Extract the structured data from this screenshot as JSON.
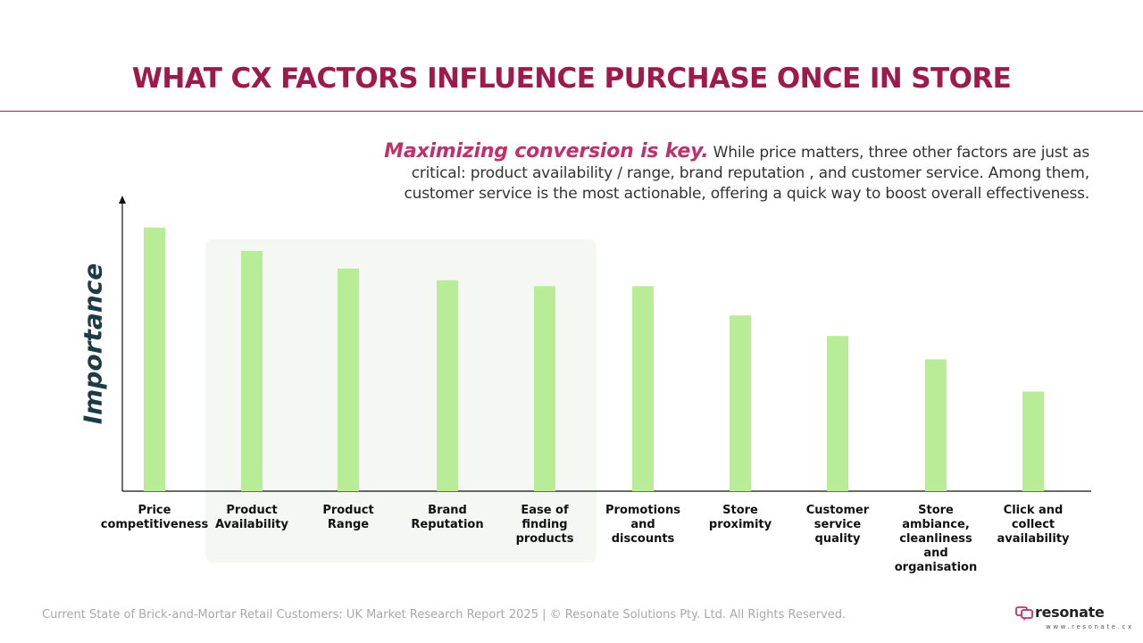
{
  "page": {
    "title": "WHAT CX FACTORS INFLUENCE PURCHASE ONCE IN STORE",
    "intro_lead": "Maximizing conversion is key.",
    "intro_body": " While price matters, three other factors are just as critical: product availability / range, brand reputation , and customer service. Among them, customer service is the most actionable, offering a quick way to boost overall effectiveness.",
    "footer": "Current State of Brick-and-Mortar Retail Customers: UK Market Research Report 2025 | © Resonate Solutions Pty. Ltd. All Rights Reserved.",
    "logo_word": "resonate",
    "logo_url": "www.resonate.cx"
  },
  "colors": {
    "title": "#9e1a4b",
    "accent": "#c2306a",
    "bar": "#b8ec97",
    "axis_label": "#1b3b47",
    "highlight_bg": "#f4f7f2"
  },
  "chart_data": {
    "type": "bar",
    "title": "",
    "xlabel": "",
    "ylabel": "Importance",
    "ylim": [
      0,
      100
    ],
    "grid": false,
    "legend": "none",
    "categories": [
      "Price competitiveness",
      "Product Availability",
      "Product Range",
      "Brand Reputation",
      "Ease of finding products",
      "Promotions and discounts",
      "Store proximity",
      "Customer service quality",
      "Store ambiance, cleanliness and organisation",
      "Click and collect availability"
    ],
    "category_lines": [
      [
        "Price",
        "competitiveness"
      ],
      [
        "Product",
        "Availability"
      ],
      [
        "Product",
        "Range"
      ],
      [
        "Brand",
        "Reputation"
      ],
      [
        "Ease of",
        "finding",
        "products"
      ],
      [
        "Promotions",
        "and",
        "discounts"
      ],
      [
        "Store",
        "proximity"
      ],
      [
        "Customer",
        "service",
        "quality"
      ],
      [
        "Store",
        "ambiance,",
        "cleanliness",
        "and",
        "organisation"
      ],
      [
        "Click and",
        "collect",
        "availability"
      ]
    ],
    "values": [
      90,
      82,
      76,
      72,
      70,
      70,
      60,
      53,
      45,
      34
    ],
    "highlighted_categories": [
      "Product Availability",
      "Product Range",
      "Brand Reputation",
      "Ease of finding products"
    ]
  }
}
